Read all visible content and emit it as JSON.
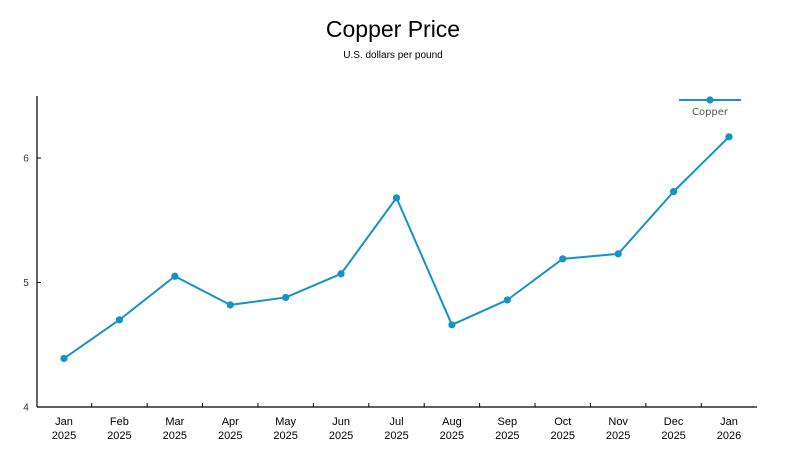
{
  "chart_data": {
    "type": "line",
    "title": "Copper Price",
    "subtitle": "U.S. dollars per pound",
    "categories": [
      "Jan 2025",
      "Feb 2025",
      "Mar 2025",
      "Apr 2025",
      "May 2025",
      "Jun 2025",
      "Jul 2025",
      "Aug 2025",
      "Sep 2025",
      "Oct 2025",
      "Nov 2025",
      "Dec 2025",
      "Jan 2026"
    ],
    "series": [
      {
        "name": "Copper",
        "values": [
          4.39,
          4.7,
          5.05,
          4.82,
          4.88,
          5.07,
          5.68,
          4.66,
          4.86,
          5.19,
          5.23,
          5.73,
          6.17
        ]
      }
    ],
    "xlabel": "",
    "ylabel": "",
    "ylim": [
      4,
      6.5
    ],
    "yticks": [
      4,
      5,
      6
    ],
    "grid": false,
    "legend": "top-right",
    "colors": {
      "line": "#1592c6",
      "axis": "#000000"
    }
  }
}
